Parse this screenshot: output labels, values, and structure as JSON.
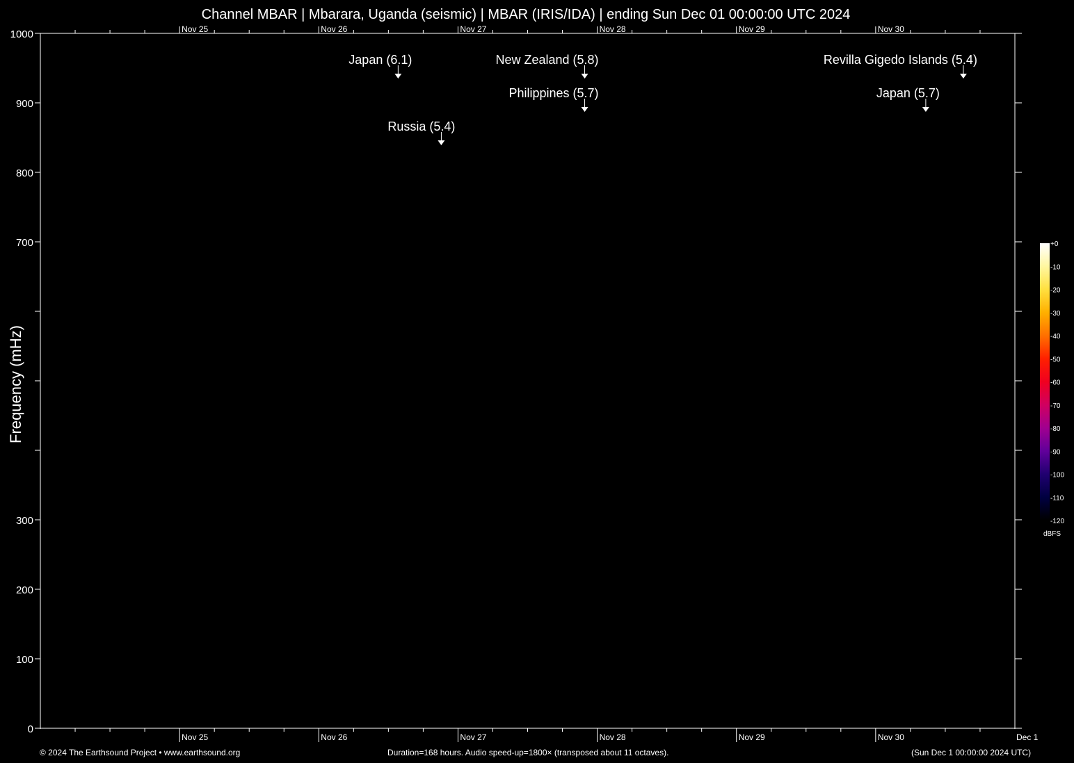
{
  "chart_data": {
    "type": "heatmap",
    "title": "Channel MBAR | Mbarara, Uganda (seismic) | MBAR (IRIS/IDA) | ending Sun Dec 01 00:00:00 UTC 2024",
    "ylabel": "Frequency (mHz)",
    "ylim": [
      0,
      1000
    ],
    "y_tick_labels": [
      "0",
      "100",
      "200",
      "300",
      "700",
      "800",
      "900",
      "1000"
    ],
    "y_tick_values": [
      0,
      100,
      200,
      300,
      700,
      800,
      900,
      1000
    ],
    "x_range_days": [
      0,
      7
    ],
    "x_tick_labels": [
      "Nov 25",
      "Nov 26",
      "Nov 27",
      "Nov 28",
      "Nov 29",
      "Nov 30"
    ],
    "x_end_label": "Dec  1",
    "events": [
      {
        "label": "Japan (6.1)",
        "day": 2.57,
        "row": 0
      },
      {
        "label": "New Zealand (5.8)",
        "day": 3.91,
        "row": 0
      },
      {
        "label": "Revilla Gigedo Islands (5.4)",
        "day": 6.63,
        "row": 0
      },
      {
        "label": "Philippines (5.7)",
        "day": 3.91,
        "row": 1
      },
      {
        "label": "Japan (5.7)",
        "day": 6.36,
        "row": 1
      },
      {
        "label": "Russia (5.4)",
        "day": 2.88,
        "row": 2
      }
    ],
    "colorbar": {
      "unit": "dBFS",
      "range": [
        -120,
        0
      ],
      "labels": [
        "+0",
        "-10",
        "-20",
        "-30",
        "-40",
        "-50",
        "-60",
        "-70",
        "-80",
        "-90",
        "-100",
        "-110",
        "-120"
      ],
      "colors": [
        "#ffffff",
        "#fff7a0",
        "#ffe040",
        "#ffb000",
        "#ff7000",
        "#ff2000",
        "#f00020",
        "#d00060",
        "#a00090",
        "#60009a",
        "#200070",
        "#000040",
        "#000000"
      ]
    }
  },
  "footer": {
    "left": "© 2024 The Earthsound Project • www.earthsound.org",
    "center": "Duration=168 hours. Audio speed-up=1800× (transposed about 11 octaves).",
    "right": "(Sun Dec  1 00:00:00 2024 UTC)"
  }
}
